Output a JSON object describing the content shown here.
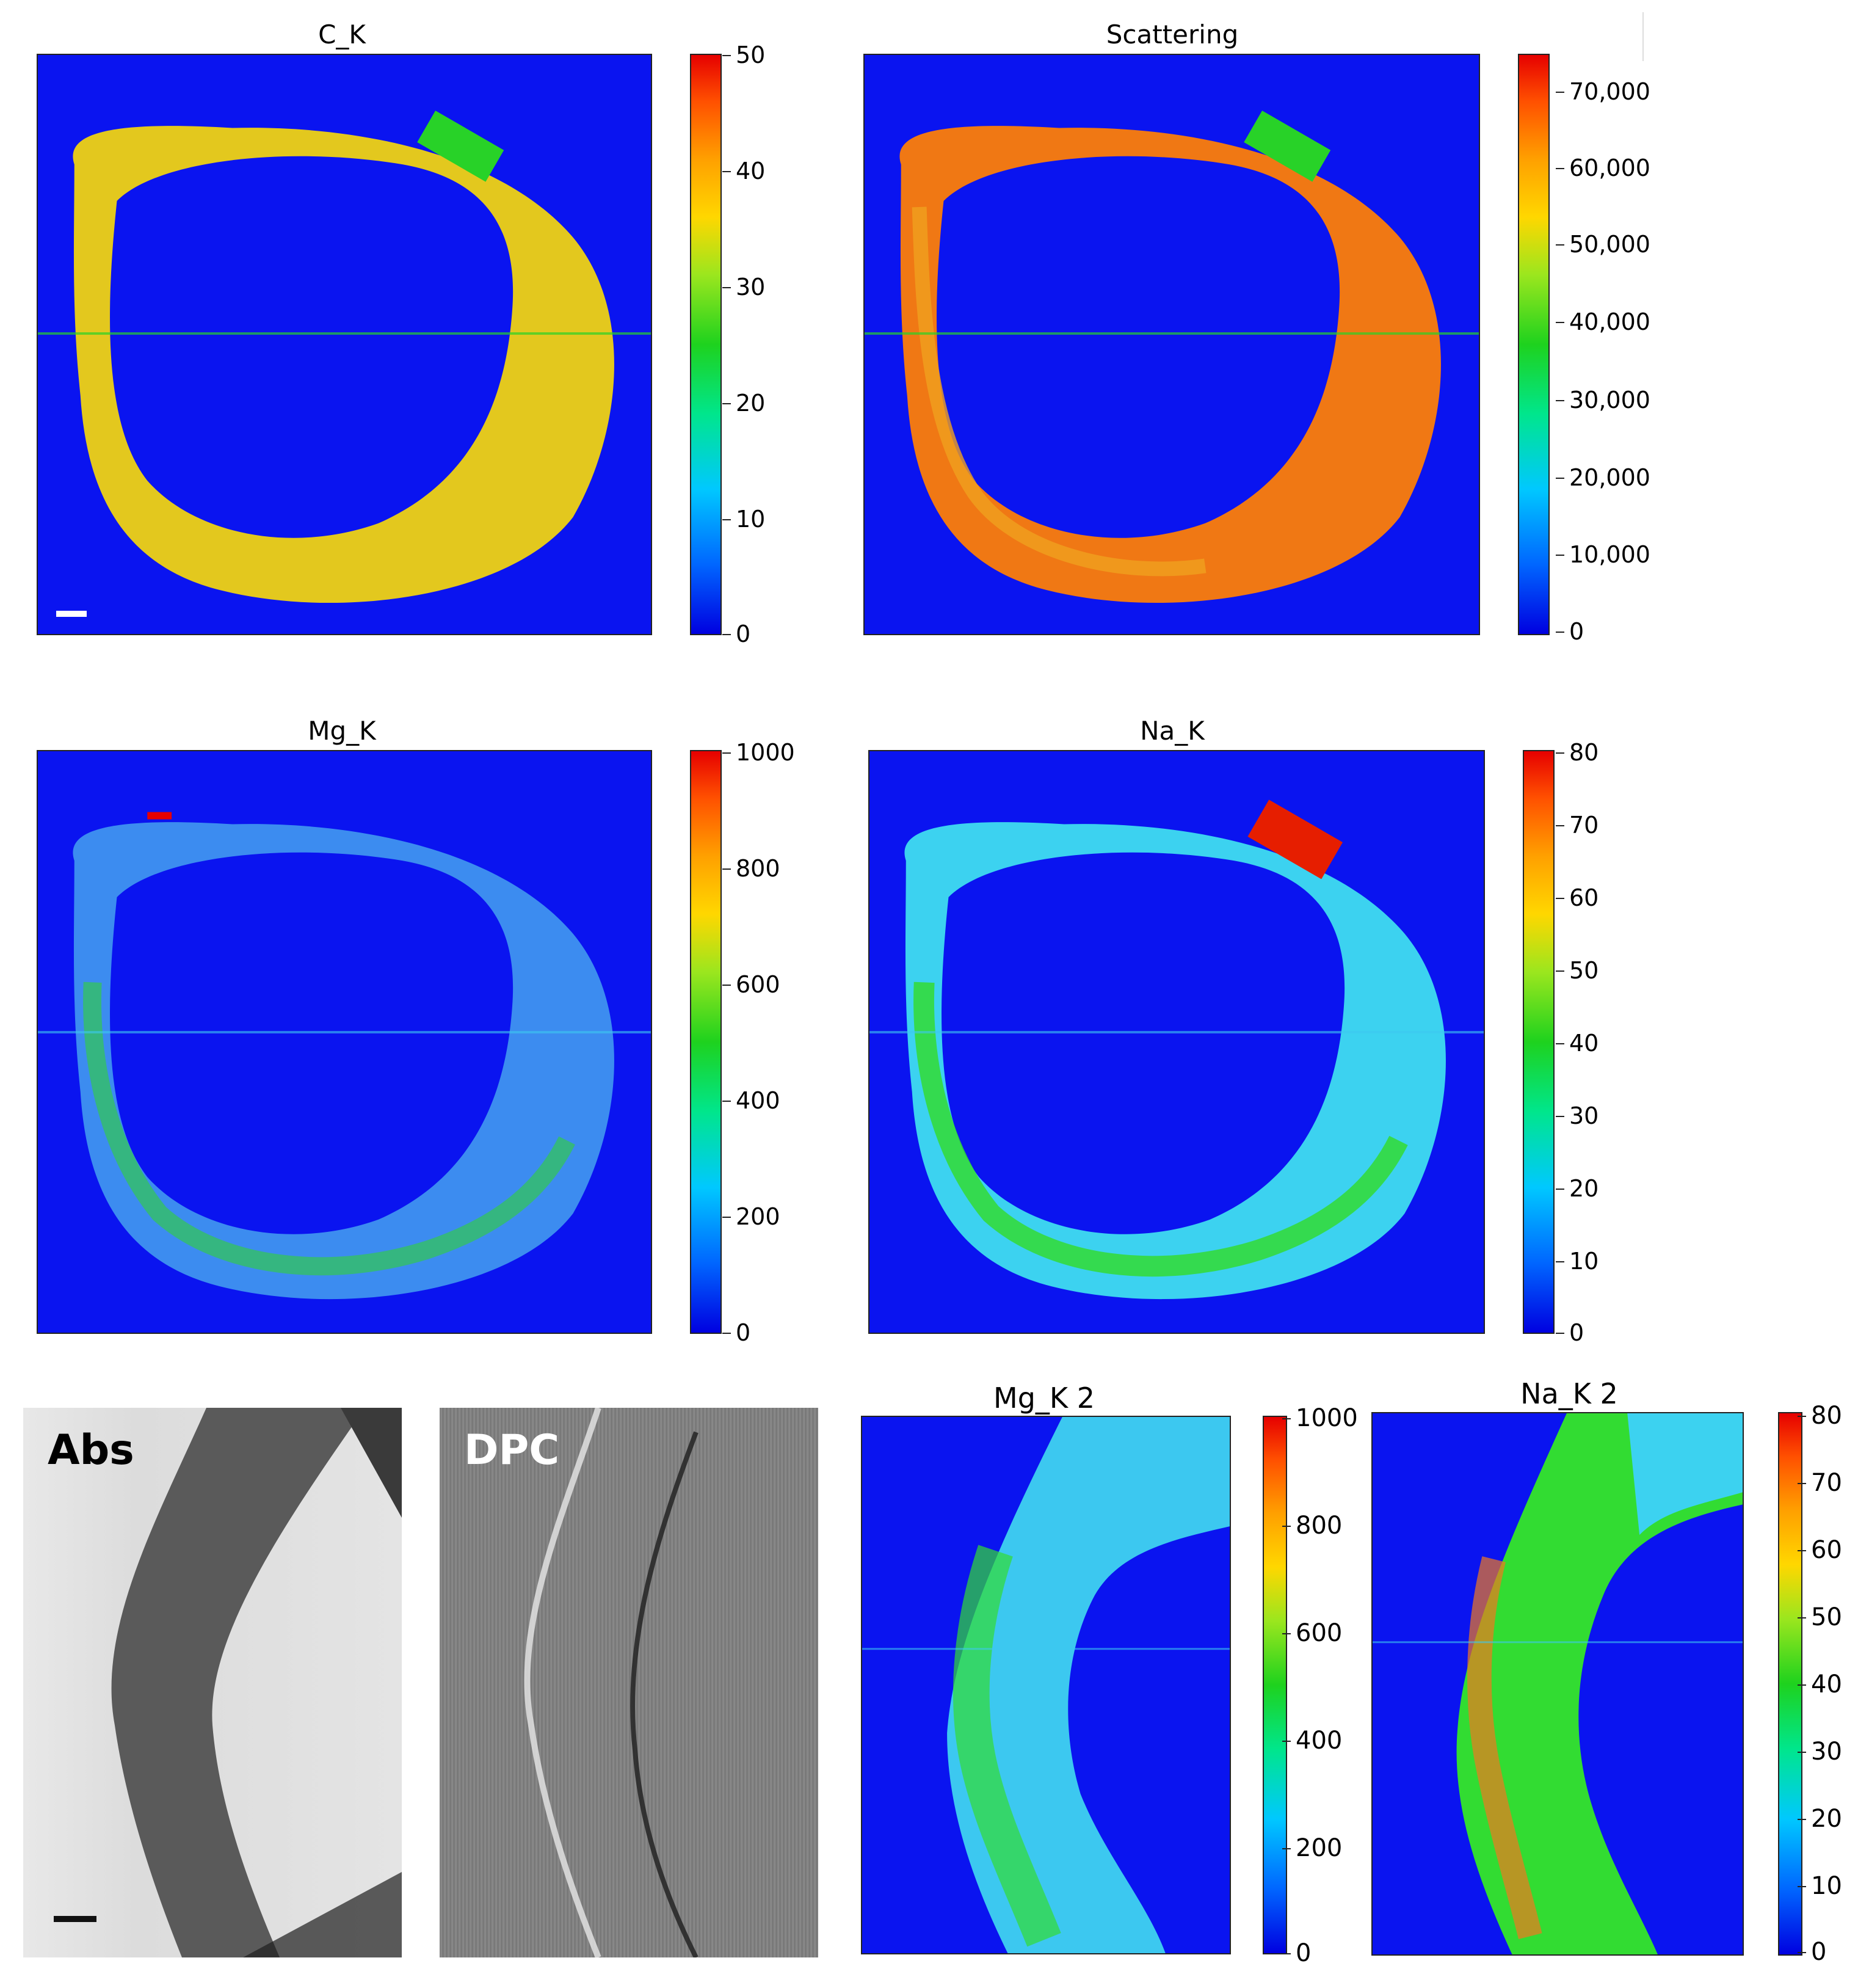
{
  "panels": {
    "ck": {
      "title": "C_K",
      "ticks": [
        "50",
        "40",
        "30",
        "20",
        "10",
        "0"
      ]
    },
    "scattering": {
      "title": "Scattering",
      "ticks": [
        "70,000",
        "60,000",
        "50,000",
        "40,000",
        "30,000",
        "20,000",
        "10,000",
        "0"
      ]
    },
    "mgk": {
      "title": "Mg_K",
      "ticks": [
        "1000",
        "800",
        "600",
        "400",
        "200",
        "0"
      ]
    },
    "nak": {
      "title": "Na_K",
      "ticks": [
        "80",
        "70",
        "60",
        "50",
        "40",
        "30",
        "20",
        "10",
        "0"
      ]
    },
    "abs": {
      "label": "Abs"
    },
    "dpc": {
      "label": "DPC"
    },
    "mgk2": {
      "title": "Mg_K 2",
      "ticks": [
        "1000",
        "800",
        "600",
        "400",
        "200",
        "0"
      ]
    },
    "nak2": {
      "title": "Na_K 2",
      "ticks": [
        "80",
        "70",
        "60",
        "50",
        "40",
        "30",
        "20",
        "10",
        "0"
      ]
    }
  },
  "colors": {
    "background_blue": "#0a14f0",
    "ring_yellow": "#e6d21e",
    "ring_orange": "#f07814",
    "ring_cyan": "#3cc8f0",
    "ring_green": "#32dc32"
  }
}
